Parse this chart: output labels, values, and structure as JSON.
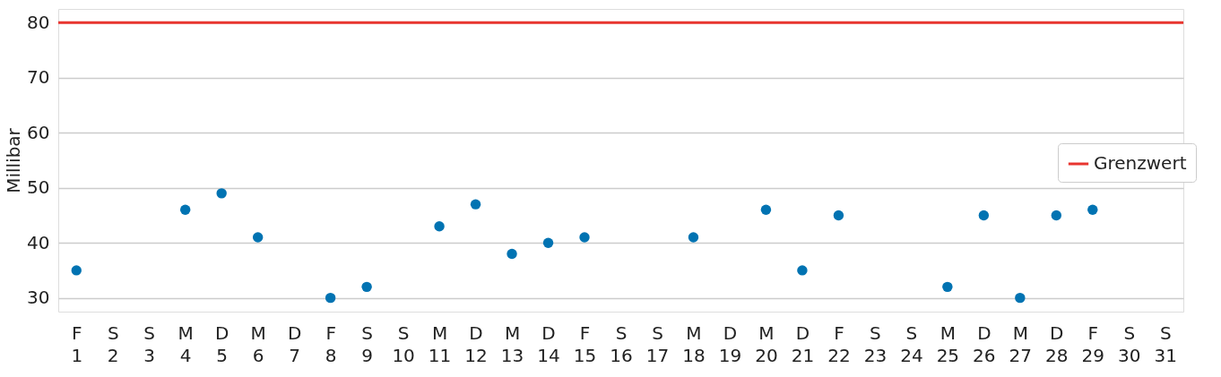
{
  "chart_data": {
    "type": "scatter",
    "ylabel": "Millibar",
    "categories": [
      "F\n1",
      "S\n2",
      "S\n3",
      "M\n4",
      "D\n5",
      "M\n6",
      "D\n7",
      "F\n8",
      "S\n9",
      "S\n10",
      "M\n11",
      "D\n12",
      "M\n13",
      "D\n14",
      "F\n15",
      "S\n16",
      "S\n17",
      "M\n18",
      "D\n19",
      "M\n20",
      "D\n21",
      "F\n22",
      "S\n23",
      "S\n24",
      "M\n25",
      "D\n26",
      "M\n27",
      "D\n28",
      "F\n29",
      "S\n30",
      "S\n31"
    ],
    "series": [
      {
        "color": "#0173b2",
        "values": [
          35,
          null,
          null,
          46,
          49,
          41,
          null,
          30,
          32,
          null,
          43,
          47,
          38,
          40,
          41,
          null,
          null,
          41,
          null,
          46,
          35,
          45,
          null,
          null,
          32,
          45,
          30,
          45,
          46,
          null,
          null
        ]
      }
    ],
    "ylim": [
      27.5,
      82.5
    ],
    "yticks": [
      30,
      40,
      50,
      60,
      70,
      80
    ],
    "ref_lines": [
      {
        "axis": "y",
        "value": 80,
        "label": "Grenzwert",
        "color": "#e8352f",
        "line_style": "solid"
      }
    ],
    "grid": "y",
    "legend": "right",
    "marker": "circle"
  }
}
